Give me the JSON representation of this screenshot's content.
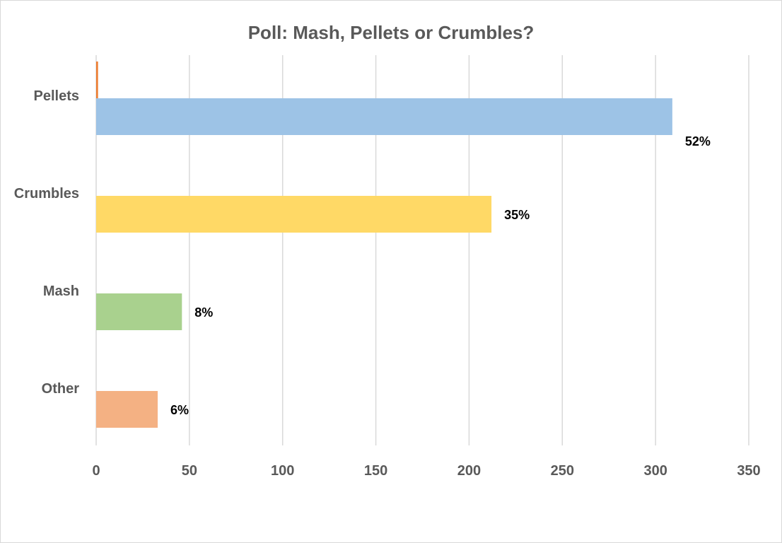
{
  "chart_data": {
    "type": "bar",
    "orientation": "horizontal",
    "title": "Poll: Mash, Pellets or Crumbles?",
    "xlabel": "",
    "ylabel": "",
    "categories": [
      "Pellets",
      "Crumbles",
      "Mash",
      "Other"
    ],
    "values": [
      309,
      212,
      46,
      33
    ],
    "secondary_values": [
      1,
      0,
      0,
      0
    ],
    "data_labels": [
      "52%",
      "35%",
      "8%",
      "6%"
    ],
    "colors": [
      "#9dc3e6",
      "#ffd966",
      "#a9d18e",
      "#f4b183"
    ],
    "secondary_color": "#ed7d31",
    "xlim": [
      0,
      350
    ],
    "xticks": [
      0,
      50,
      100,
      150,
      200,
      250,
      300,
      350
    ],
    "grid": true,
    "legend": "none"
  }
}
